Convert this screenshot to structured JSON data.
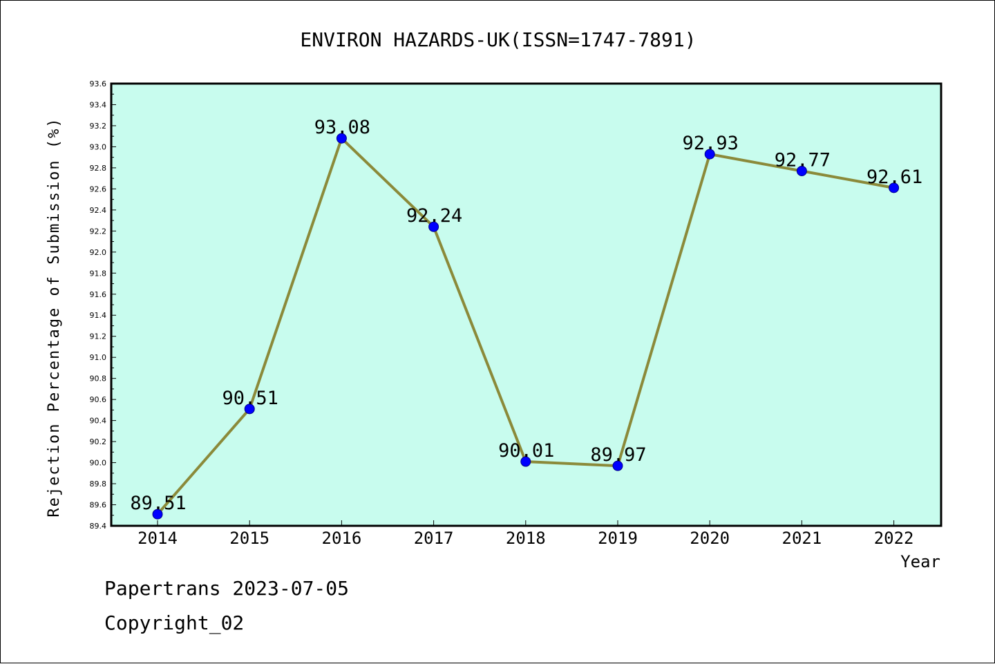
{
  "chart_data": {
    "type": "line",
    "title": "ENVIRON HAZARDS-UK(ISSN=1747-7891)",
    "xlabel": "Year",
    "ylabel": "Rejection Percentage of Submission (%)",
    "categories": [
      "2014",
      "2015",
      "2016",
      "2017",
      "2018",
      "2019",
      "2020",
      "2021",
      "2022"
    ],
    "series": [
      {
        "values": [
          89.51,
          90.51,
          93.08,
          92.24,
          90.01,
          89.97,
          92.93,
          92.77,
          92.61
        ]
      }
    ],
    "data_labels": [
      "89.51",
      "90.51",
      "93.08",
      "92.24",
      "90.01",
      "89.97",
      "92.93",
      "92.77",
      "92.61"
    ],
    "ylim": [
      89.4,
      93.6
    ],
    "y_ticks": [
      "89.4",
      "89.6",
      "89.8",
      "90.0",
      "90.2",
      "90.4",
      "90.6",
      "90.8",
      "91.0",
      "91.2",
      "91.4",
      "91.6",
      "91.8",
      "92.0",
      "92.2",
      "92.4",
      "92.6",
      "92.8",
      "93.0",
      "93.2",
      "93.4",
      "93.6"
    ],
    "grid": false,
    "colors": {
      "plot_background": "#c8fcee",
      "line": "#8b8a3a",
      "marker": "#0000ff"
    }
  },
  "footer": {
    "line1": "Papertrans 2023-07-05",
    "line2": "Copyright_02"
  }
}
